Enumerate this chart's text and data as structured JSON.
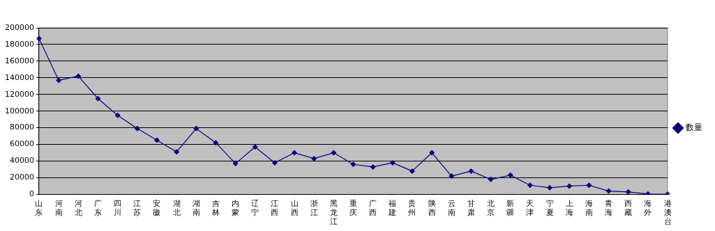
{
  "chart_data": {
    "type": "line",
    "categories": [
      "山东",
      "河南",
      "河北",
      "广东",
      "四川",
      "江苏",
      "安徽",
      "湖北",
      "湖南",
      "吉林",
      "内蒙",
      "辽宁",
      "江西",
      "山西",
      "浙江",
      "黑龙江",
      "重庆",
      "广西",
      "福建",
      "贵州",
      "陕西",
      "云南",
      "甘肃",
      "北京",
      "新疆",
      "天津",
      "宁夏",
      "上海",
      "海南",
      "青海",
      "西藏",
      "海外",
      "港澳台"
    ],
    "series": [
      {
        "name": "数量",
        "color": "#000080",
        "values": [
          187000,
          137000,
          142000,
          115000,
          95000,
          79000,
          65000,
          51000,
          79000,
          62000,
          37000,
          57000,
          38000,
          50000,
          43000,
          50000,
          36000,
          33000,
          38000,
          28000,
          50000,
          22000,
          28000,
          18000,
          23000,
          11000,
          8000,
          10000,
          11000,
          4000,
          3000,
          500,
          300
        ]
      }
    ],
    "ylim": [
      0,
      200000
    ],
    "yticks": [
      0,
      20000,
      40000,
      60000,
      80000,
      100000,
      120000,
      140000,
      160000,
      180000,
      200000
    ],
    "grid": "y",
    "legend": "right",
    "marker": "diamond",
    "line_style": "solid"
  }
}
